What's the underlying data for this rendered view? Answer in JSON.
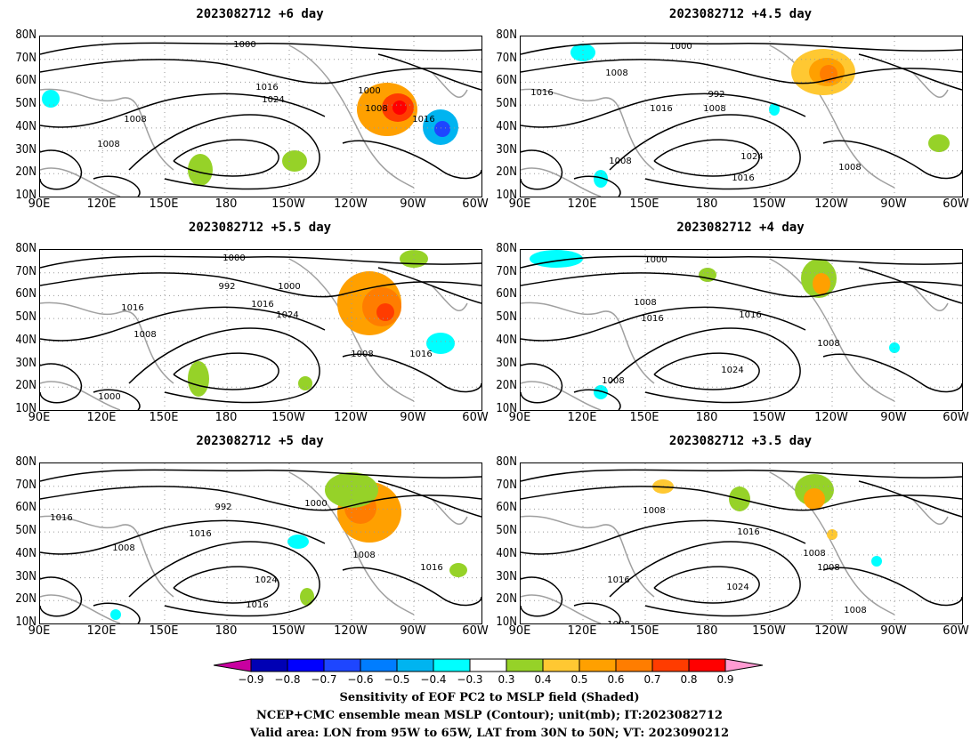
{
  "panels": [
    {
      "title": "2023082712  +6 day",
      "contour_labels": [
        "1000",
        "1016",
        "1024",
        "1008",
        "1008",
        "1000",
        "1008",
        "1016"
      ]
    },
    {
      "title": "2023082712  +4.5 day",
      "contour_labels": [
        "1000",
        "1008",
        "1016",
        "992",
        "1016",
        "1008",
        "1024",
        "1008",
        "1016",
        "1008"
      ]
    },
    {
      "title": "2023082712  +5.5 day",
      "contour_labels": [
        "1000",
        "992",
        "1000",
        "1016",
        "1016",
        "1024",
        "1008",
        "1008",
        "1016",
        "1000"
      ]
    },
    {
      "title": "2023082712  +4 day",
      "contour_labels": [
        "1000",
        "1008",
        "1016",
        "1016",
        "1008",
        "1024",
        "1008"
      ]
    },
    {
      "title": "2023082712  +5 day",
      "contour_labels": [
        "992",
        "1000",
        "1016",
        "1016",
        "1008",
        "1008",
        "1016",
        "1024",
        "1016"
      ]
    },
    {
      "title": "2023082712  +3.5 day",
      "contour_labels": [
        "1008",
        "1016",
        "1008",
        "1008",
        "1016",
        "1024",
        "1008",
        "1008"
      ]
    }
  ],
  "lat_labels": [
    "80N",
    "70N",
    "60N",
    "50N",
    "40N",
    "30N",
    "20N",
    "10N"
  ],
  "lon_labels": [
    "90E",
    "120E",
    "150E",
    "180",
    "150W",
    "120W",
    "90W",
    "60W"
  ],
  "colorbar": {
    "labels": [
      "−0.9",
      "−0.8",
      "−0.7",
      "−0.6",
      "−0.5",
      "−0.4",
      "−0.3",
      "0.3",
      "0.4",
      "0.5",
      "0.6",
      "0.7",
      "0.8",
      "0.9"
    ],
    "colors": [
      "#0000b4",
      "#0000ff",
      "#1e46ff",
      "#007dff",
      "#00b4f0",
      "#00ffff",
      "#ffffff",
      "#96d228",
      "#ffc832",
      "#ffa000",
      "#ff7d00",
      "#ff3c00",
      "#ff0000"
    ],
    "low_end_color": "#c800a0",
    "high_end_color": "#ff9bd2"
  },
  "footer": {
    "line1": "Sensitivity of EOF PC2 to MSLP field (Shaded)",
    "line2": "NCEP+CMC ensemble mean MSLP (Contour); unit(mb); IT:2023082712",
    "line3": "Valid area: LON from 95W to 65W, LAT from 30N to 50N; VT: 2023090212"
  }
}
